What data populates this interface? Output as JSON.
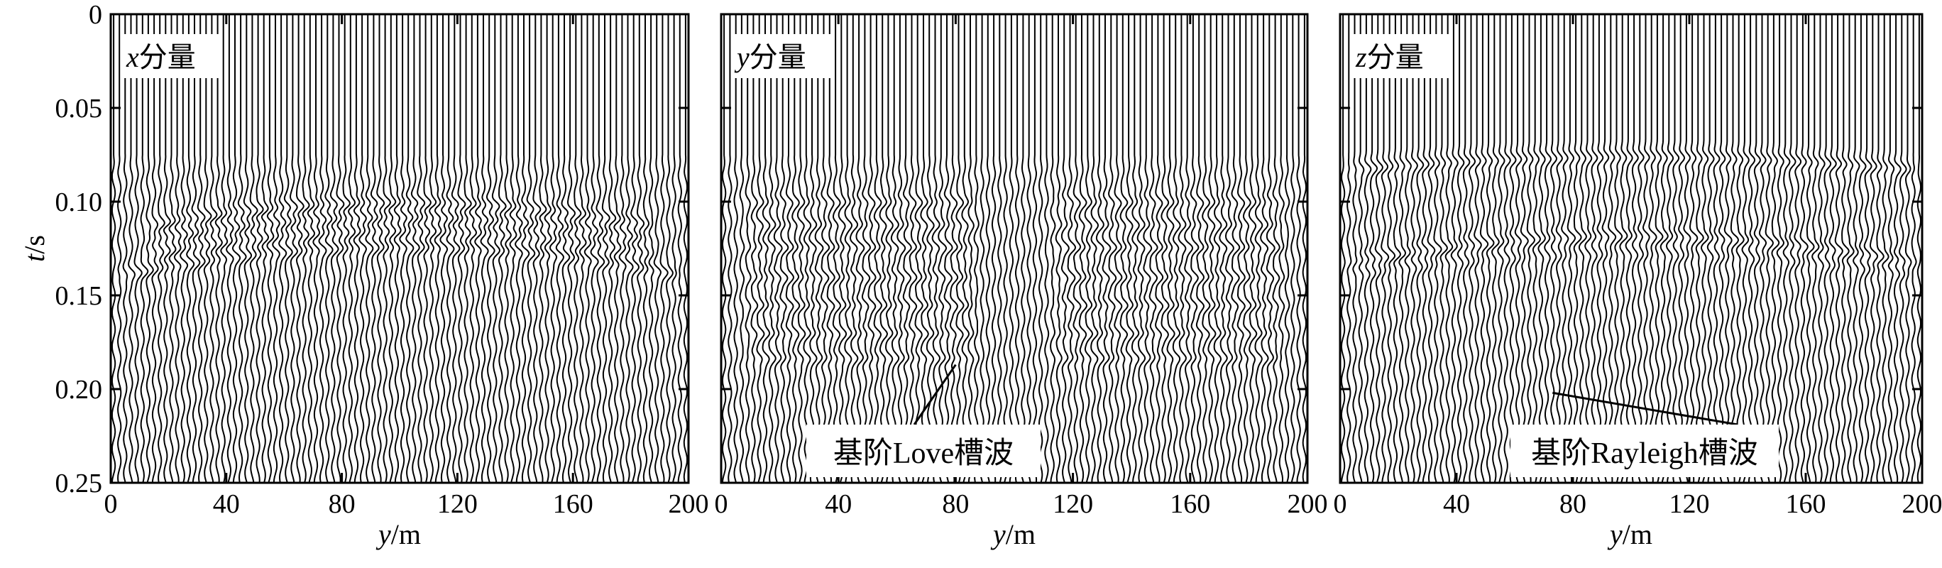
{
  "chart_data": {
    "type": "seismic-wiggle",
    "y_axis_label": {
      "italic": "t",
      "unit": "/s"
    },
    "y_ticks": [
      "0",
      "0.05",
      "0.10",
      "0.15",
      "0.20",
      "0.25"
    ],
    "y_tick_values": [
      0,
      0.05,
      0.1,
      0.15,
      0.2,
      0.25
    ],
    "ylim": [
      0,
      0.25
    ],
    "x_ticks": [
      "0",
      "40",
      "80",
      "120",
      "160",
      "200"
    ],
    "x_tick_values": [
      0,
      40,
      80,
      120,
      160,
      200
    ],
    "xlim": [
      0,
      200
    ],
    "trace_count": 100,
    "panels": [
      {
        "label_italic": "x",
        "label_rest": "分量",
        "x_axis_label": {
          "italic": "y",
          "unit": "/m"
        },
        "onset_time": 0.075,
        "events": [
          {
            "t_center": 0.1,
            "t_edge": 0.116,
            "amplitude": 1.0,
            "x_from": 10,
            "x_to": 190
          },
          {
            "t_center": 0.108,
            "t_edge": 0.124,
            "amplitude": 0.9,
            "x_from": 10,
            "x_to": 190
          },
          {
            "t_center": 0.115,
            "t_edge": 0.131,
            "amplitude": 0.85,
            "x_from": 10,
            "x_to": 190
          },
          {
            "t_center": 0.124,
            "t_edge": 0.14,
            "amplitude": 1.0,
            "x_from": 0,
            "x_to": 200
          }
        ]
      },
      {
        "label_italic": "y",
        "label_rest": "分量",
        "x_axis_label": {
          "italic": "y",
          "unit": "/m"
        },
        "onset_time": 0.075,
        "annotation": {
          "text": "基阶Love槽波",
          "point_to": [
            80,
            0.187
          ]
        },
        "events": [
          {
            "t_center": 0.1,
            "t_edge": 0.1,
            "amplitude": 0.8,
            "x_from": 5,
            "x_to": 90
          },
          {
            "t_center": 0.112,
            "t_edge": 0.112,
            "amplitude": 0.8,
            "x_from": 5,
            "x_to": 90
          },
          {
            "t_center": 0.124,
            "t_edge": 0.124,
            "amplitude": 1.0,
            "x_from": 5,
            "x_to": 90
          },
          {
            "t_center": 0.14,
            "t_edge": 0.14,
            "amplitude": 0.9,
            "x_from": 5,
            "x_to": 90
          },
          {
            "t_center": 0.155,
            "t_edge": 0.155,
            "amplitude": 0.9,
            "x_from": 5,
            "x_to": 90
          },
          {
            "t_center": 0.17,
            "t_edge": 0.17,
            "amplitude": 0.85,
            "x_from": 5,
            "x_to": 90
          },
          {
            "t_center": 0.183,
            "t_edge": 0.183,
            "amplitude": 0.8,
            "x_from": 5,
            "x_to": 90
          },
          {
            "t_center": 0.1,
            "t_edge": 0.1,
            "amplitude": 0.8,
            "x_from": 110,
            "x_to": 195
          },
          {
            "t_center": 0.112,
            "t_edge": 0.112,
            "amplitude": 0.8,
            "x_from": 110,
            "x_to": 195
          },
          {
            "t_center": 0.124,
            "t_edge": 0.124,
            "amplitude": 1.0,
            "x_from": 110,
            "x_to": 195
          },
          {
            "t_center": 0.14,
            "t_edge": 0.14,
            "amplitude": 0.9,
            "x_from": 110,
            "x_to": 195
          },
          {
            "t_center": 0.155,
            "t_edge": 0.155,
            "amplitude": 0.9,
            "x_from": 110,
            "x_to": 195
          },
          {
            "t_center": 0.17,
            "t_edge": 0.17,
            "amplitude": 0.85,
            "x_from": 110,
            "x_to": 195
          },
          {
            "t_center": 0.183,
            "t_edge": 0.183,
            "amplitude": 0.8,
            "x_from": 110,
            "x_to": 195
          }
        ]
      },
      {
        "label_italic": "z",
        "label_rest": "分量",
        "x_axis_label": {
          "italic": "y",
          "unit": "/m"
        },
        "onset_time": 0.075,
        "annotation": {
          "text": "基阶Rayleigh槽波",
          "point_to": [
            73,
            0.202
          ]
        },
        "events": [
          {
            "t_center": 0.076,
            "t_edge": 0.083,
            "amplitude": 1.0,
            "x_from": 0,
            "x_to": 200
          },
          {
            "t_center": 0.118,
            "t_edge": 0.133,
            "amplitude": 1.0,
            "x_from": 0,
            "x_to": 200
          },
          {
            "t_center": 0.128,
            "t_edge": 0.14,
            "amplitude": 0.55,
            "x_from": 0,
            "x_to": 200
          }
        ]
      }
    ]
  }
}
